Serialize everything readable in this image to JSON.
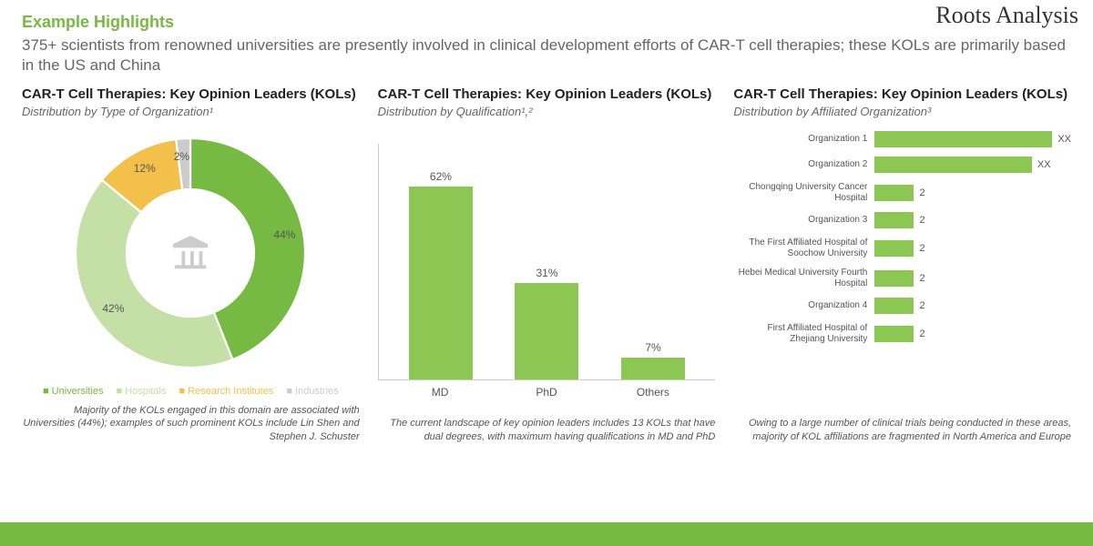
{
  "brand": {
    "name": "Roots Analysis"
  },
  "colors": {
    "accent": "#76b943",
    "accent_light": "#c4e0a6",
    "yellow": "#f2c04b",
    "gray": "#cccccc",
    "text_muted": "#666666",
    "footer": "#76b943"
  },
  "header": {
    "highlights_label": "Example Highlights",
    "subtitle": "375+ scientists from renowned universities are presently involved in clinical development efforts of CAR-T cell therapies; these KOLs are primarily based in the US and China"
  },
  "donut": {
    "title": "CAR-T Cell Therapies: Key Opinion Leaders (KOLs)",
    "subtitle": "Distribution by Type of Organization¹",
    "type": "donut",
    "segments": [
      {
        "label": "Universities",
        "value": 44,
        "color": "#76b943",
        "display": "44%"
      },
      {
        "label": "Hospitals",
        "value": 42,
        "color": "#c4e0a6",
        "display": "42%"
      },
      {
        "label": "Research Institutes",
        "value": 12,
        "color": "#f2c04b",
        "display": "12%"
      },
      {
        "label": "Industries",
        "value": 2,
        "color": "#cccccc",
        "display": "2%"
      }
    ],
    "legend": [
      "Universities",
      "Hospitals",
      "Research Institutes",
      "Industries"
    ],
    "footnote": "Majority of the KOLs engaged in this domain are associated with Universities (44%); examples of such prominent KOLs include Lin Shen and Stephen J. Schuster"
  },
  "barchart": {
    "title": "CAR-T Cell Therapies: Key Opinion Leaders (KOLs)",
    "subtitle": "Distribution by Qualification¹,²",
    "type": "bar",
    "ylim": [
      0,
      70
    ],
    "bar_color": "#8cc653",
    "bars": [
      {
        "label": "MD",
        "value": 62,
        "display": "62%"
      },
      {
        "label": "PhD",
        "value": 31,
        "display": "31%"
      },
      {
        "label": "Others",
        "value": 7,
        "display": "7%"
      }
    ],
    "footnote": "The current landscape of key opinion leaders includes 13 KOLs that have dual degrees, with maximum having qualifications in MD and PhD"
  },
  "hbarchart": {
    "title": "CAR-T Cell Therapies: Key Opinion Leaders (KOLs)",
    "subtitle": "Distribution by Affiliated Organization³",
    "type": "hbar",
    "max": 10,
    "bar_color": "#8cc653",
    "rows": [
      {
        "label": "Organization 1",
        "value": 10,
        "display": "XX"
      },
      {
        "label": "Organization 2",
        "value": 8,
        "display": "XX"
      },
      {
        "label": "Chongqing University Cancer Hospital",
        "value": 2,
        "display": "2"
      },
      {
        "label": "Organization 3",
        "value": 2,
        "display": "2"
      },
      {
        "label": "The First Affiliated Hospital of Soochow University",
        "value": 2,
        "display": "2"
      },
      {
        "label": "Hebei Medical University Fourth Hospital",
        "value": 2,
        "display": "2"
      },
      {
        "label": "Organization 4",
        "value": 2,
        "display": "2"
      },
      {
        "label": "First Affiliated Hospital of Zhejiang University",
        "value": 2,
        "display": "2"
      }
    ],
    "footnote": "Owing to a large number of clinical trials being conducted in these areas, majority of KOL affiliations are fragmented in North America and Europe"
  }
}
